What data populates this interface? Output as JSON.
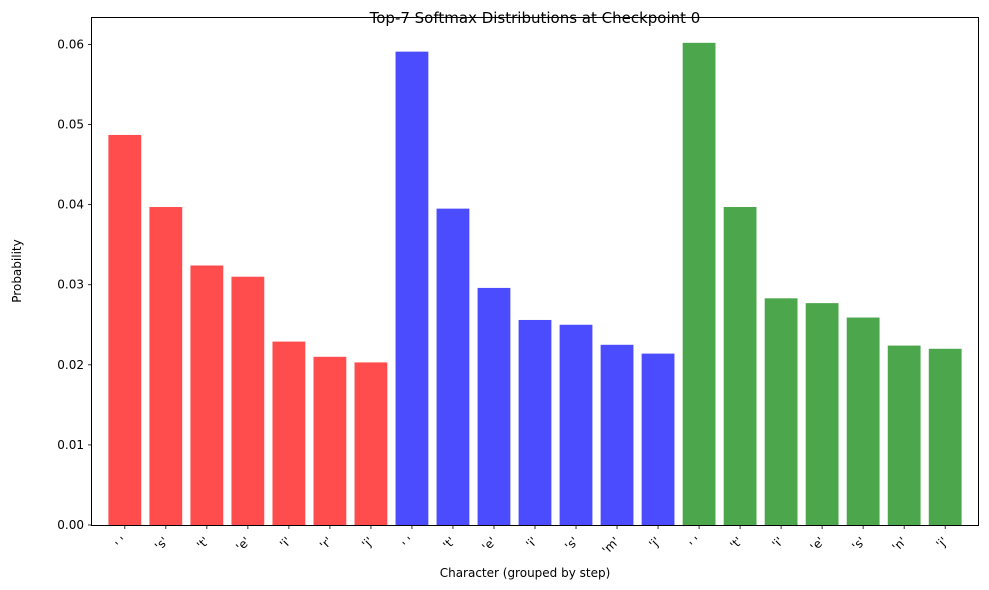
{
  "chart_data": {
    "type": "bar",
    "title": "Top-7 Softmax Distributions at Checkpoint 0",
    "xlabel": "Character (grouped by step)",
    "ylabel": "Probability",
    "ylim": [
      0,
      0.0633
    ],
    "yticks": [
      "0.00",
      "0.01",
      "0.02",
      "0.03",
      "0.04",
      "0.05",
      "0.06"
    ],
    "ytick_values": [
      0,
      0.01,
      0.02,
      0.03,
      0.04,
      0.05,
      0.06
    ],
    "grid": false,
    "legend": "none",
    "categories": [
      "' '",
      "'s'",
      "'t'",
      "'e'",
      "'i'",
      "'r'",
      "'j'",
      "' '",
      "'t'",
      "'e'",
      "'i'",
      "'s'",
      "'m'",
      "'j'",
      "' '",
      "'t'",
      "'i'",
      "'e'",
      "'s'",
      "'n'",
      "'j'"
    ],
    "values": [
      0.0487,
      0.0397,
      0.0324,
      0.031,
      0.0229,
      0.021,
      0.0203,
      0.0591,
      0.0395,
      0.0296,
      0.0256,
      0.025,
      0.0225,
      0.0214,
      0.0602,
      0.0397,
      0.0283,
      0.0277,
      0.0259,
      0.0224,
      0.022
    ],
    "bar_colors": [
      "#ff4c4c",
      "#ff4c4c",
      "#ff4c4c",
      "#ff4c4c",
      "#ff4c4c",
      "#ff4c4c",
      "#ff4c4c",
      "#4c4cff",
      "#4c4cff",
      "#4c4cff",
      "#4c4cff",
      "#4c4cff",
      "#4c4cff",
      "#4c4cff",
      "#4ca64c",
      "#4ca64c",
      "#4ca64c",
      "#4ca64c",
      "#4ca64c",
      "#4ca64c",
      "#4ca64c"
    ]
  }
}
